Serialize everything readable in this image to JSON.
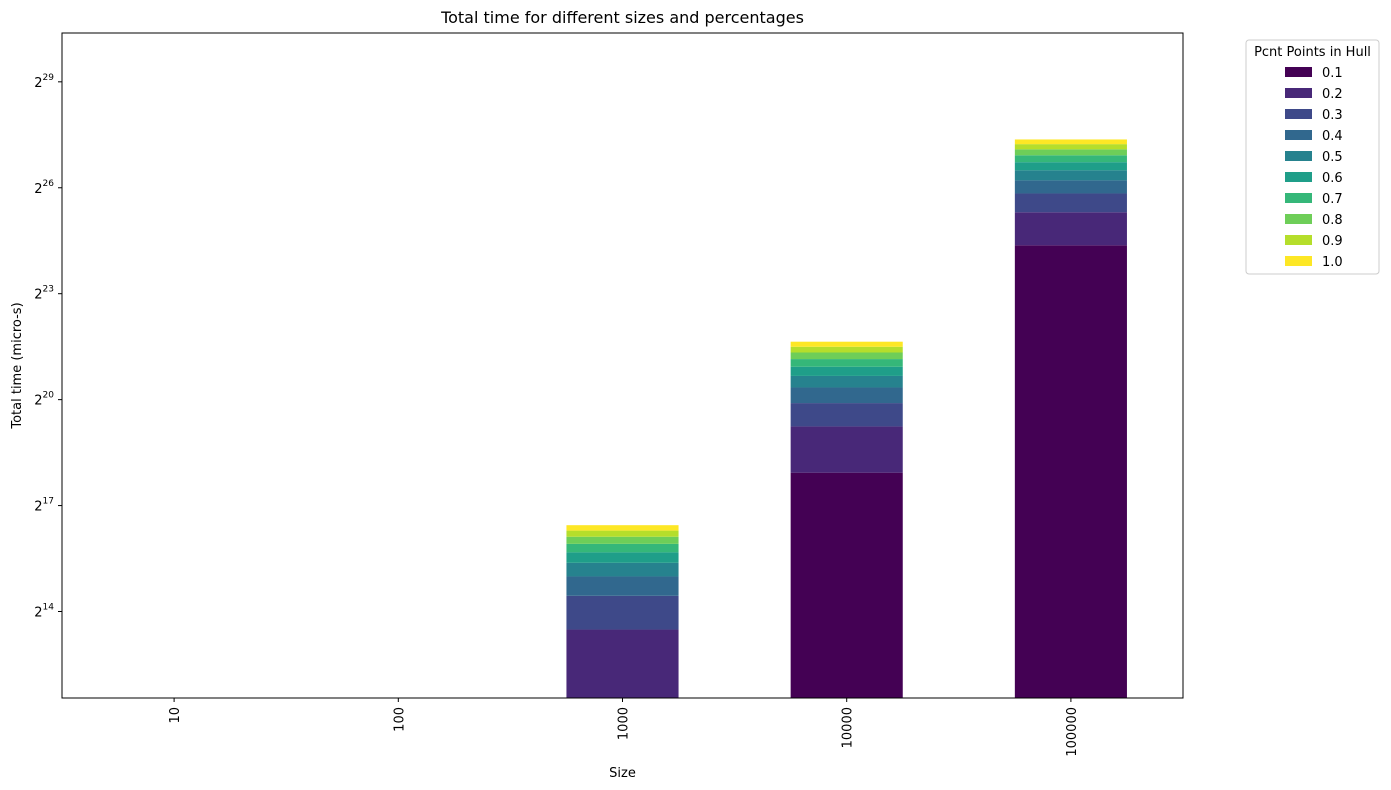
{
  "chart_data": {
    "type": "bar",
    "stacked": true,
    "title": "Total time for different sizes and percentages",
    "xlabel": "Size",
    "ylabel": "Total time (micro-s)",
    "yscale": "log2",
    "ylim": [
      3000,
      1400000000
    ],
    "yticks": [
      {
        "value": 16384,
        "base": "2",
        "exp": "14"
      },
      {
        "value": 131072,
        "base": "2",
        "exp": "17"
      },
      {
        "value": 1048576,
        "base": "2",
        "exp": "20"
      },
      {
        "value": 8388608,
        "base": "2",
        "exp": "23"
      },
      {
        "value": 67108864,
        "base": "2",
        "exp": "26"
      },
      {
        "value": 536870912,
        "base": "2",
        "exp": "29"
      }
    ],
    "categories": [
      "10",
      "100",
      "1000",
      "10000",
      "100000"
    ],
    "grid": false,
    "legend": {
      "title": "Pcnt Points in Hull",
      "placement": "outside-upper-right"
    },
    "series": [
      {
        "name": "0.1",
        "color": "#440154",
        "values": [
          0,
          0,
          0,
          250000,
          21700000
        ]
      },
      {
        "name": "0.2",
        "color": "#482878",
        "values": [
          0,
          0,
          11500,
          370000,
          19800000
        ]
      },
      {
        "name": "0.3",
        "color": "#3e4989",
        "values": [
          0,
          0,
          10800,
          360000,
          18500000
        ]
      },
      {
        "name": "0.4",
        "color": "#31688e",
        "values": [
          0,
          0,
          10300,
          350000,
          17600000
        ]
      },
      {
        "name": "0.5",
        "color": "#26828e",
        "values": [
          0,
          0,
          10000,
          340000,
          16900000
        ]
      },
      {
        "name": "0.6",
        "color": "#1f9e89",
        "values": [
          0,
          0,
          9700,
          330000,
          16400000
        ]
      },
      {
        "name": "0.7",
        "color": "#35b779",
        "values": [
          0,
          0,
          9500,
          325000,
          16000000
        ]
      },
      {
        "name": "0.8",
        "color": "#6ece58",
        "values": [
          0,
          0,
          9300,
          320000,
          15700000
        ]
      },
      {
        "name": "0.9",
        "color": "#b5de2b",
        "values": [
          0,
          0,
          9100,
          315000,
          15400000
        ]
      },
      {
        "name": "1.0",
        "color": "#fde725",
        "values": [
          0,
          0,
          9000,
          310000,
          15200000
        ]
      }
    ]
  }
}
